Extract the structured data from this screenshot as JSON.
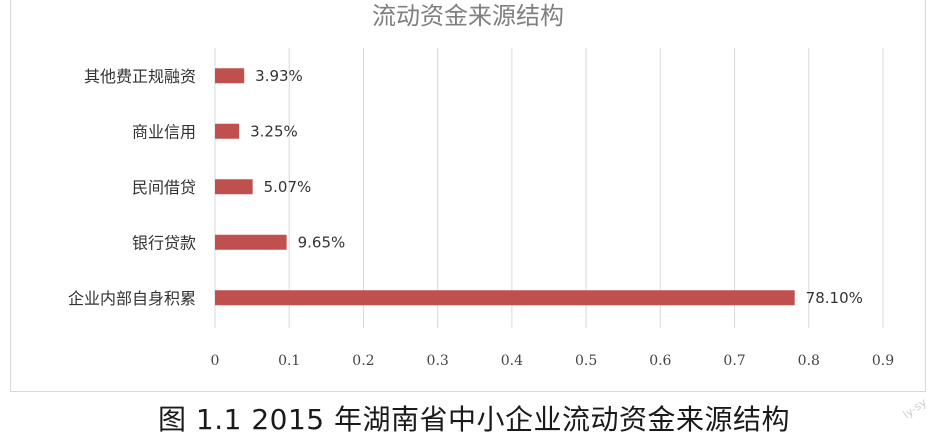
{
  "chart_data": {
    "type": "bar",
    "orientation": "horizontal",
    "title": "流动资金来源结构",
    "categories": [
      "其他费正规融资",
      "商业信用",
      "民间借贷",
      "银行贷款",
      "企业内部自身积累"
    ],
    "values": [
      0.0393,
      0.0325,
      0.0507,
      0.0965,
      0.781
    ],
    "data_labels": [
      "3.93%",
      "3.25%",
      "5.07%",
      "9.65%",
      "78.10%"
    ],
    "x_ticks": [
      "0",
      "0.1",
      "0.2",
      "0.3",
      "0.4",
      "0.5",
      "0.6",
      "0.7",
      "0.8",
      "0.9"
    ],
    "xlim": [
      0,
      0.9
    ],
    "xlabel": "",
    "ylabel": "",
    "grid": true,
    "legend": "none",
    "bar_color": "#c0504d"
  },
  "caption": "图 1.1   2015 年湖南省中小企业流动资金来源结构",
  "watermark": "ly-sy"
}
